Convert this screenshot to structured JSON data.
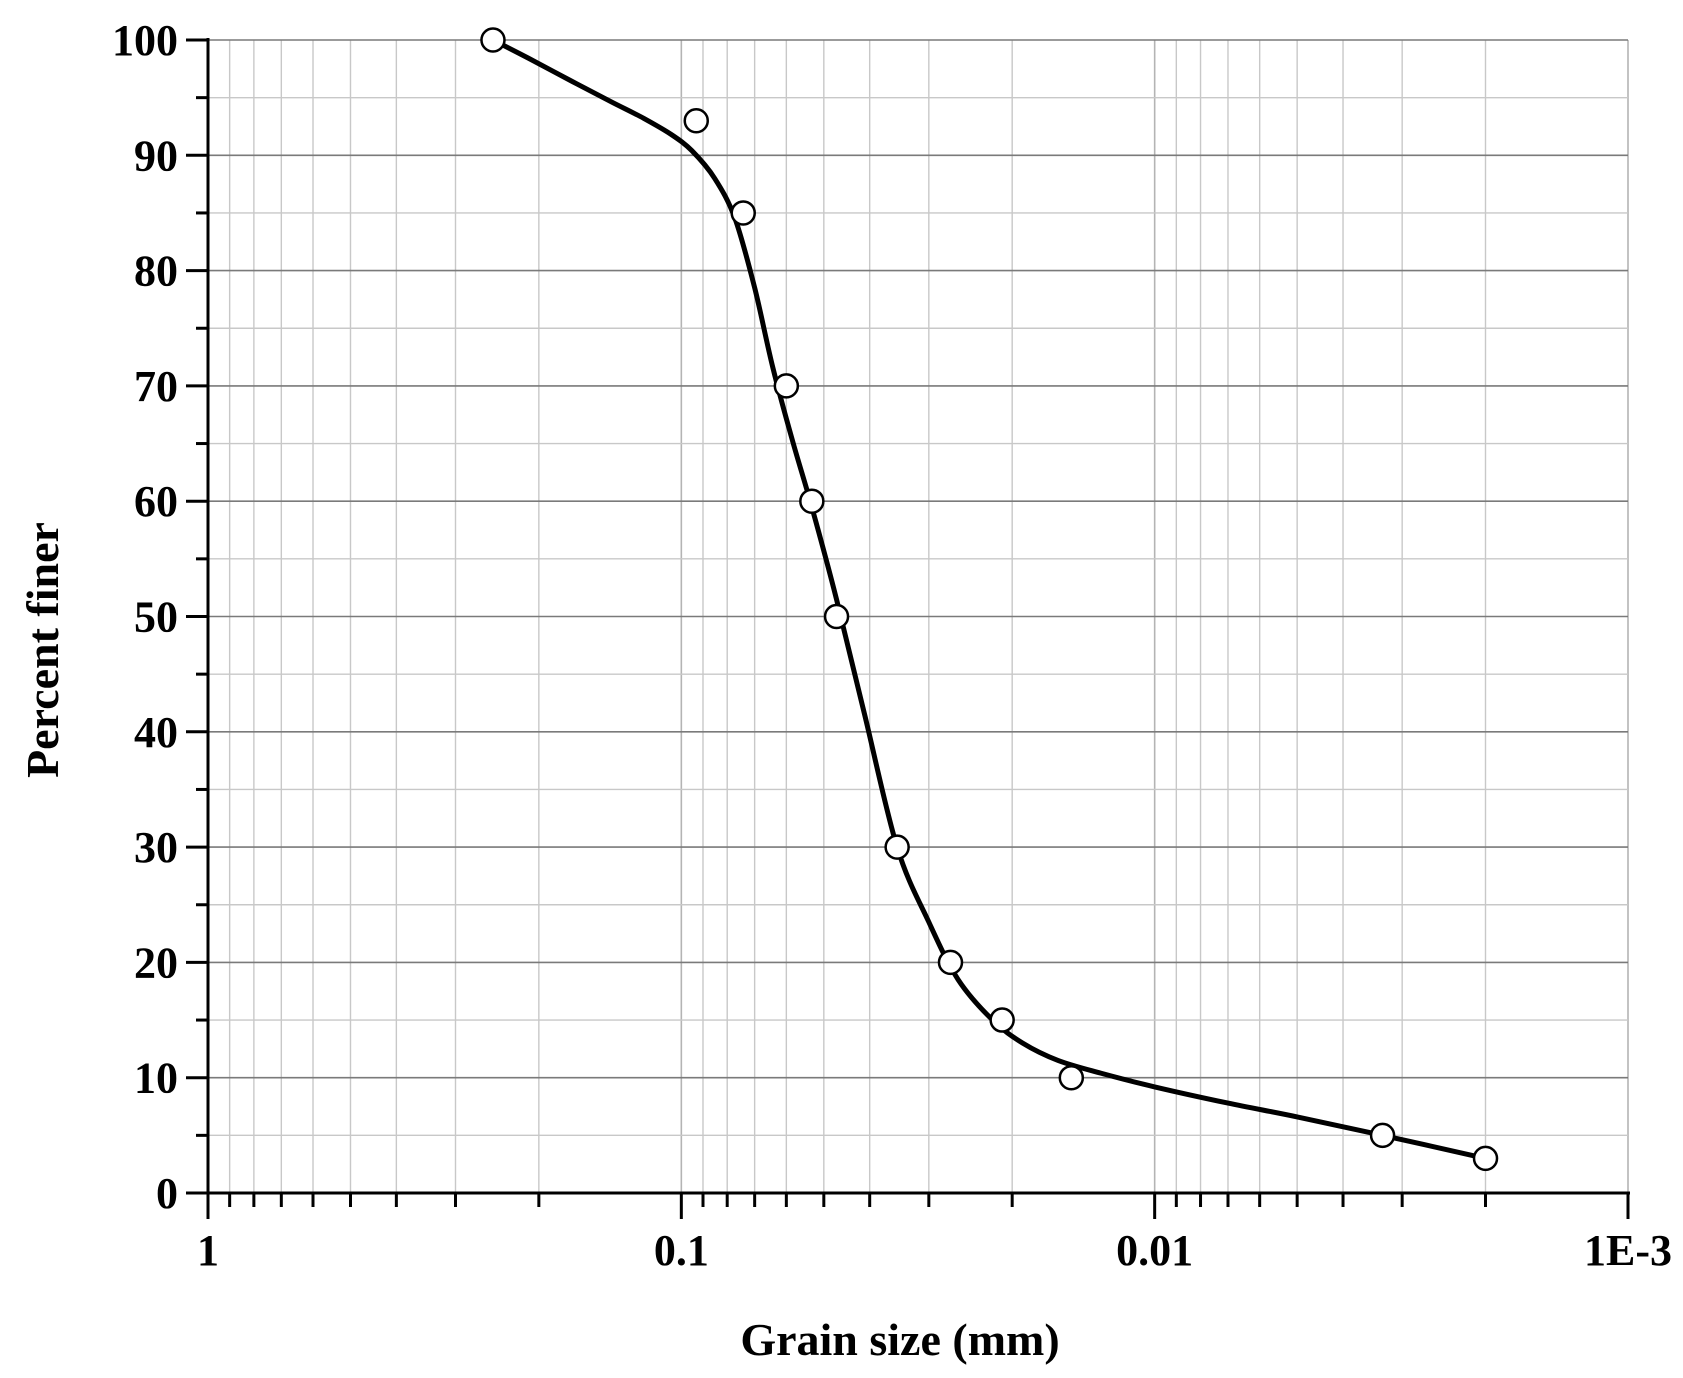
{
  "chart_data": {
    "type": "scatter",
    "xlabel": "Grain size (mm)",
    "ylabel": "Percent finer",
    "x_scale": "log",
    "x_reversed": true,
    "xlim": [
      1,
      0.001
    ],
    "ylim": [
      0,
      100
    ],
    "x_ticks": [
      {
        "value": 1,
        "label": "1"
      },
      {
        "value": 0.1,
        "label": "0.1"
      },
      {
        "value": 0.01,
        "label": "0.01"
      },
      {
        "value": 0.001,
        "label": "1E-3"
      }
    ],
    "y_ticks": [
      0,
      10,
      20,
      30,
      40,
      50,
      60,
      70,
      80,
      90,
      100
    ],
    "grid": true,
    "series": [
      {
        "style": "open-circle-markers-with-smooth-fit-curve",
        "color": "#000000",
        "x": [
          0.25,
          0.093,
          0.074,
          0.06,
          0.053,
          0.047,
          0.035,
          0.027,
          0.021,
          0.015,
          0.0033,
          0.002
        ],
        "y": [
          100,
          93,
          85,
          70,
          60,
          50,
          30,
          20,
          15,
          10,
          5,
          3
        ]
      }
    ],
    "curve_x": [
      0.25,
      0.21,
      0.17,
      0.14,
      0.12,
      0.105,
      0.095,
      0.085,
      0.077,
      0.07,
      0.064,
      0.058,
      0.053,
      0.047,
      0.041,
      0.035,
      0.03,
      0.026,
      0.022,
      0.019,
      0.016,
      0.013,
      0.01,
      0.007,
      0.005,
      0.0033,
      0.002
    ],
    "curve_y": [
      100,
      98.4,
      96.4,
      94.6,
      93.2,
      91.8,
      90.4,
      88,
      84.5,
      78.5,
      71.5,
      65,
      59.5,
      51.5,
      41.5,
      30,
      23.5,
      18.5,
      15,
      13,
      11.5,
      10.4,
      9.2,
      7.8,
      6.6,
      5,
      3
    ]
  }
}
